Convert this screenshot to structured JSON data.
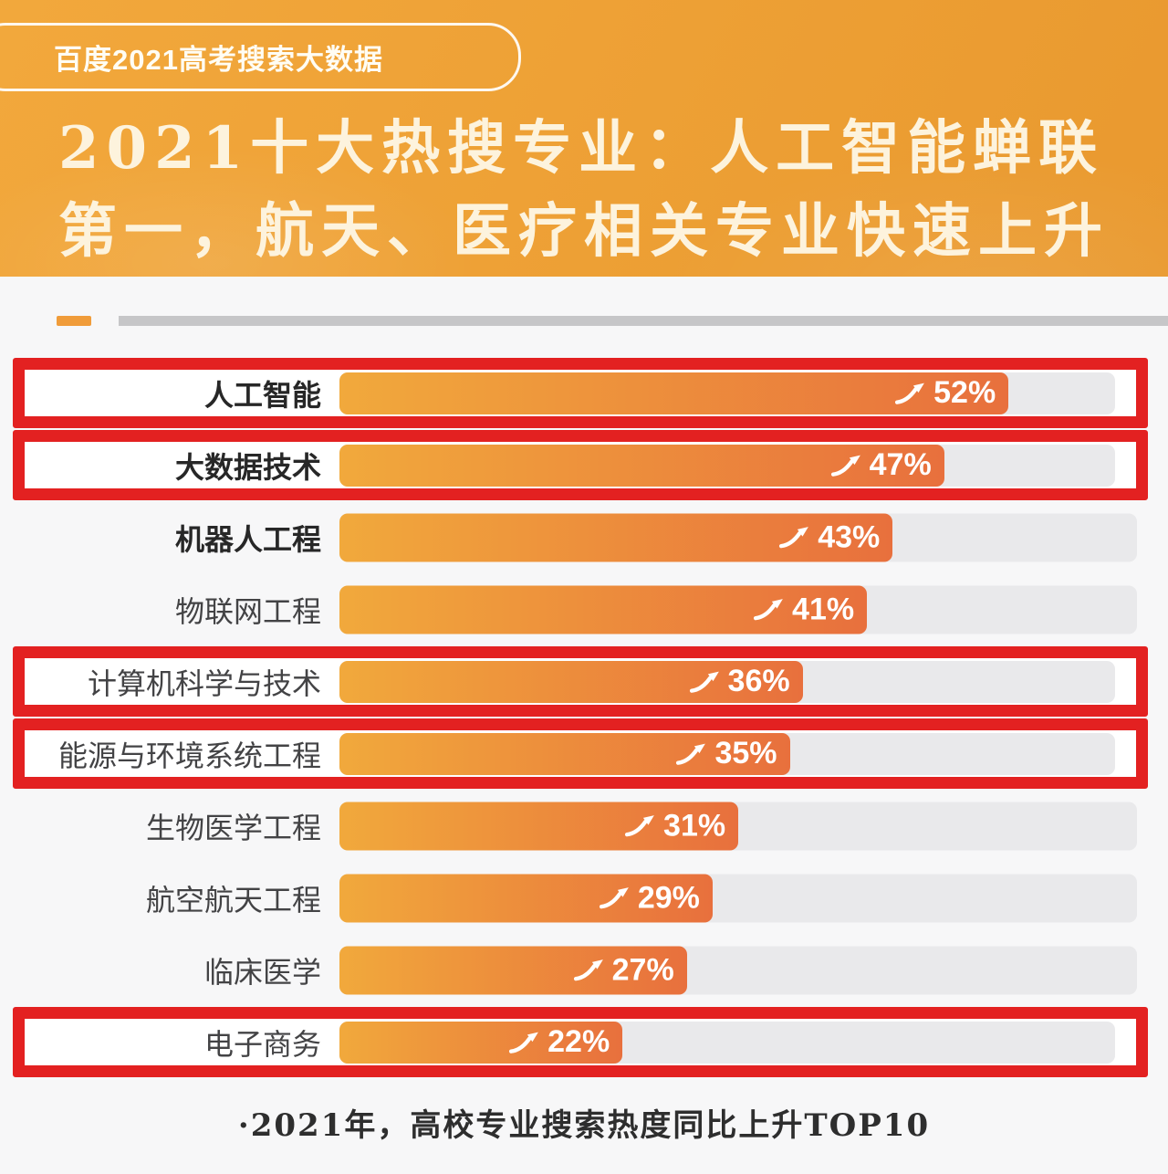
{
  "page": {
    "background": "#f7f7f8"
  },
  "header": {
    "badge": "百度2021高考搜索大数据",
    "title_line1": "2021十大热搜专业：人工智能蝉联",
    "title_line2": "第一，航天、医疗相关专业快速上升",
    "background_start": "#f2a83c",
    "background_end": "#e9992f",
    "text_color": "#fdf3dd"
  },
  "divider": {
    "accent_color": "#f09c3a",
    "bar_color": "#c6c6c8"
  },
  "chart_data": {
    "type": "bar",
    "orientation": "horizontal",
    "title": "2021年高校专业搜索热度同比上升TOP10",
    "unit": "%",
    "value_suffix": "%",
    "xlim": [
      0,
      62
    ],
    "categories": [
      "人工智能",
      "大数据技术",
      "机器人工程",
      "物联网工程",
      "计算机科学与技术",
      "能源与环境系统工程",
      "生物医学工程",
      "航空航天工程",
      "临床医学",
      "电子商务"
    ],
    "values": [
      52,
      47,
      43,
      41,
      36,
      35,
      31,
      29,
      27,
      22
    ],
    "highlighted": [
      true,
      true,
      false,
      false,
      true,
      true,
      false,
      false,
      false,
      true
    ],
    "bold_labels": [
      true,
      true,
      true,
      false,
      false,
      false,
      false,
      false,
      false,
      false
    ],
    "trend_icon": "up-arrow",
    "legend": "none",
    "grid": false,
    "track_color": "#e9e9eb",
    "bar_color_start": "#f1a93c",
    "bar_color_end": "#e8703d",
    "highlight_border_color": "#e32121"
  },
  "footer": {
    "note": "·2021年，高校专业搜索热度同比上升TOP10"
  }
}
